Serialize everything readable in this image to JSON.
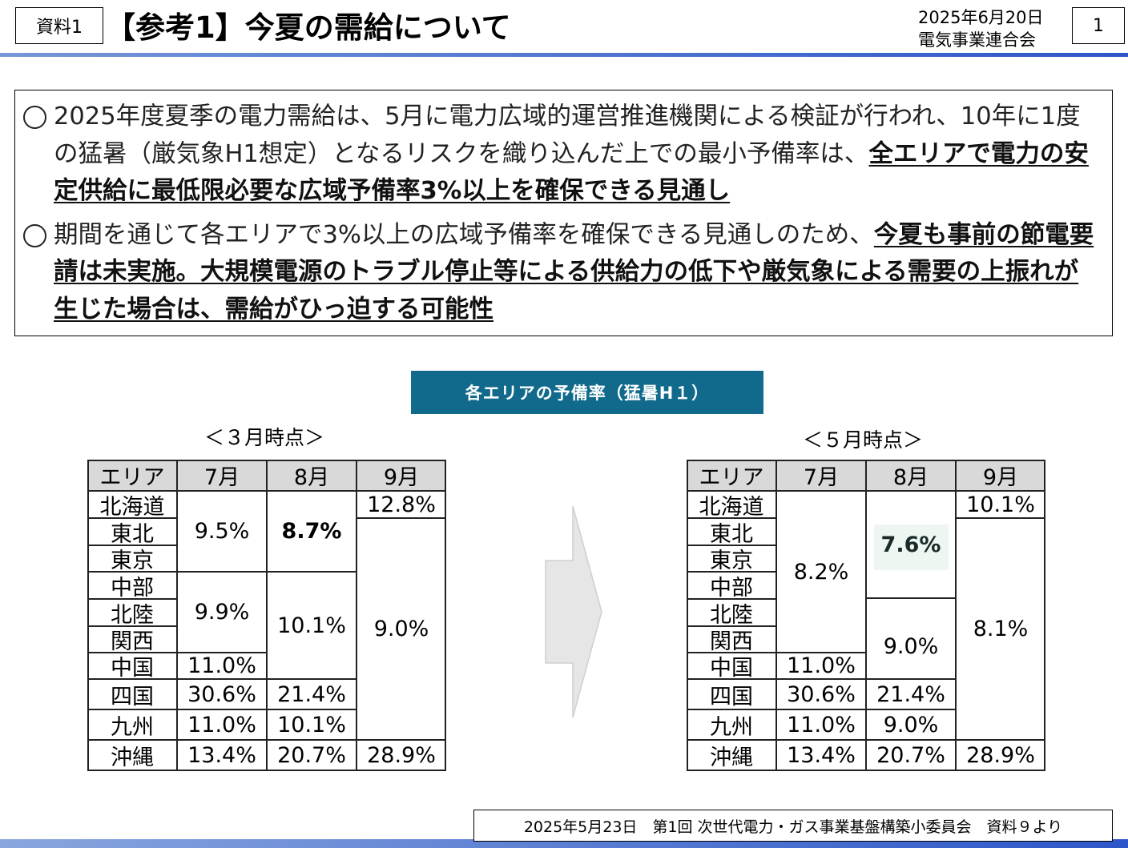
{
  "header": {
    "doc_label": "資料1",
    "title": "【参考1】今夏の需給について",
    "date": "2025年6月20日",
    "organization": "電気事業連合会",
    "page_number": "1"
  },
  "summary": {
    "bullet1_text": "2025年度夏季の電力需給は、5月に電力広域的運営推進機関による検証が行われ、10年に1度の猛暑（厳気象H1想定）となるリスクを織り込んだ上での最小予備率は、",
    "bullet1_emph": "全エリアで電力の安定供給に最低限必要な広域予備率3%以上を確保できる見通し",
    "bullet2_text": "期間を通じて各エリアで3%以上の広域予備率を確保できる見通しのため、",
    "bullet2_emph": "今夏も事前の節電要請は未実施。大規模電源のトラブル停止等による供給力の低下や厳気象による需要の上振れが生じた場合は、需給がひっ迫する可能性"
  },
  "banner": "各エリアの予備率（猛暑H１）",
  "march": {
    "caption": "＜３月時点＞",
    "header": [
      "エリア",
      "7月",
      "8月",
      "9月"
    ],
    "areas": [
      "北海道",
      "東北",
      "東京",
      "中部",
      "北陸",
      "関西",
      "中国",
      "四国",
      "九州",
      "沖縄"
    ],
    "jul": [
      "9.5%",
      "9.9%",
      "11.0%",
      "30.6%",
      "11.0%",
      "13.4%"
    ],
    "aug": [
      "8.7%",
      "10.1%",
      "21.4%",
      "10.1%",
      "20.7%"
    ],
    "sep": [
      "12.8%",
      "9.0%",
      "28.9%"
    ]
  },
  "may": {
    "caption": "＜５月時点＞",
    "header": [
      "エリア",
      "7月",
      "8月",
      "9月"
    ],
    "areas": [
      "北海道",
      "東北",
      "東京",
      "中部",
      "北陸",
      "関西",
      "中国",
      "四国",
      "九州",
      "沖縄"
    ],
    "jul": [
      "8.2%",
      "11.0%",
      "30.6%",
      "11.0%",
      "13.4%"
    ],
    "aug": [
      "7.6%",
      "9.0%",
      "21.4%",
      "9.0%",
      "20.7%"
    ],
    "sep": [
      "10.1%",
      "8.1%",
      "28.9%"
    ]
  },
  "footer": {
    "source": "2025年5月23日　第1回 次世代電力・ガス事業基盤構築小委員会　資料９より"
  },
  "colors": {
    "banner": "#116a8c",
    "header_rule": "#2d57c9",
    "table_header": "#d9d9d9",
    "highlight": "#edf6f1"
  }
}
